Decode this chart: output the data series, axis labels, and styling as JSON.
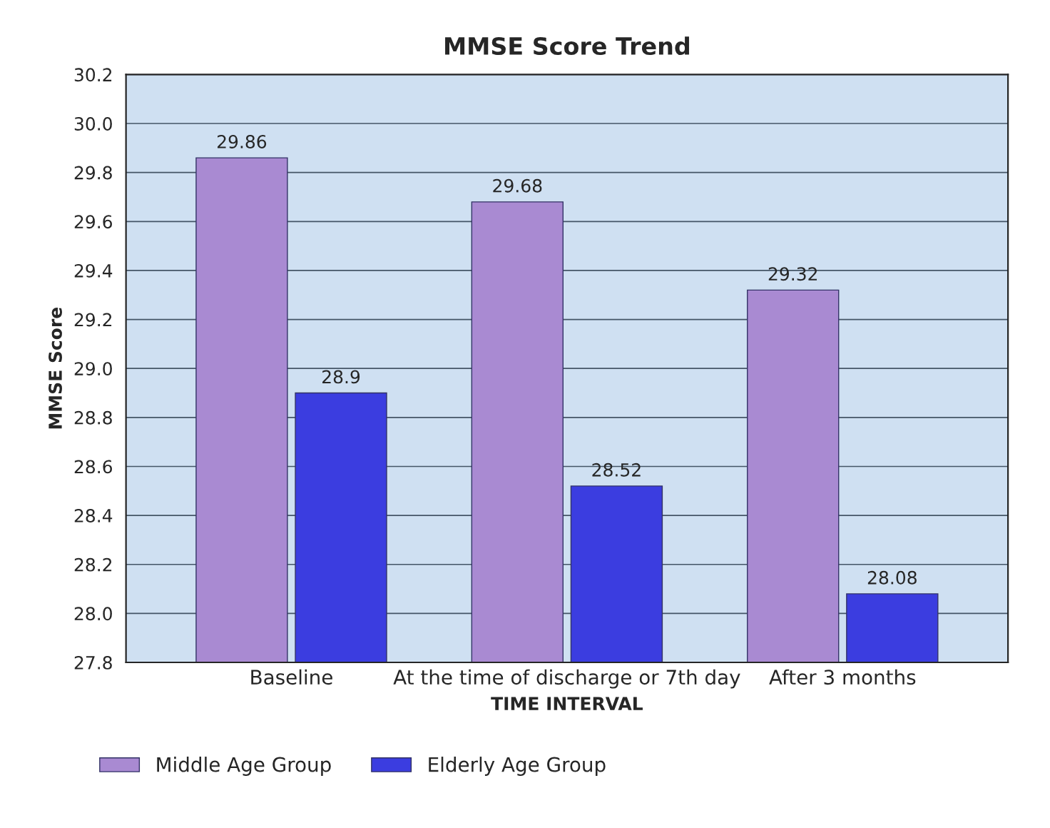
{
  "chart_data": {
    "type": "bar",
    "title": "MMSE Score Trend",
    "xlabel": "TIME INTERVAL",
    "ylabel": "MMSE Score",
    "categories": [
      "Baseline",
      "At the time of discharge or 7th day",
      "After 3 months"
    ],
    "series": [
      {
        "name": "Middle Age Group",
        "color": "#a98ad2",
        "values": [
          29.86,
          29.68,
          29.32
        ]
      },
      {
        "name": "Elderly Age Group",
        "color": "#3b3de0",
        "values": [
          28.9,
          28.52,
          28.08
        ]
      }
    ],
    "ylim": [
      27.8,
      30.2
    ],
    "yticks": [
      27.8,
      {
        "value": 28.0,
        "label": "28.0"
      },
      28.2,
      28.4,
      28.6,
      28.8,
      {
        "value": 29.0,
        "label": "29.0"
      },
      29.2,
      29.4,
      29.6,
      29.8,
      {
        "value": 30.0,
        "label": "30.0"
      },
      30.2
    ],
    "grid": "y",
    "legend": "bottom left",
    "data_labels": true
  }
}
